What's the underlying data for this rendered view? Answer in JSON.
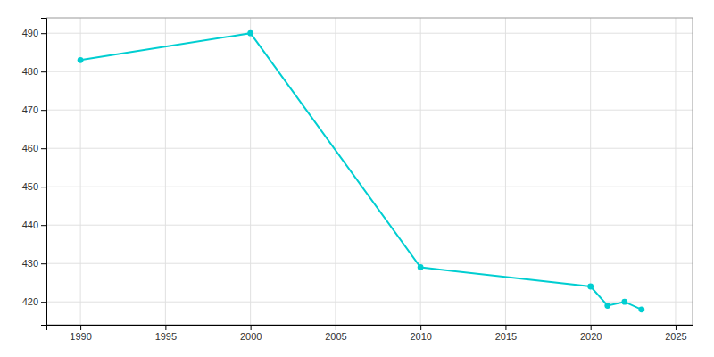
{
  "chart_data": {
    "type": "line",
    "x": [
      1990,
      2000,
      2010,
      2020,
      2021,
      2022,
      2023
    ],
    "values": [
      483,
      490,
      429,
      424,
      419,
      420,
      418
    ],
    "color": "#00CED1",
    "marker": "circle",
    "xlim": [
      1988,
      2026
    ],
    "ylim": [
      414,
      494
    ],
    "xticks": [
      1990,
      1995,
      2000,
      2005,
      2010,
      2015,
      2020,
      2025
    ],
    "yticks": [
      420,
      430,
      440,
      450,
      460,
      470,
      480,
      490
    ],
    "grid": true
  }
}
